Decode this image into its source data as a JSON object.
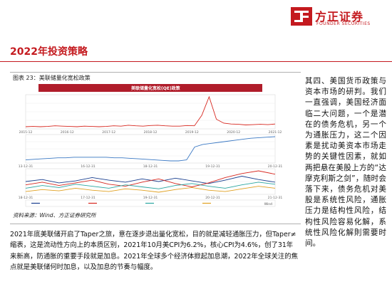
{
  "brand": {
    "name_cn": "方正证券",
    "name_en": "FOUNDER SECURITIES",
    "color": "#c41a1f"
  },
  "page": {
    "title": "2022年投资策略"
  },
  "figure": {
    "caption": "图表 23：美联储量化宽松政策",
    "source": "资料来源：Wind、方正证券研究所"
  },
  "chart_data": {
    "type": "line",
    "title": "美联储量化宽松(QE)政策",
    "panels": [
      {
        "name": "top",
        "x_ticks": [
          "2015-12",
          "2016-12",
          "2017-12",
          "2018-12",
          "2019-12",
          "2020-12",
          "2021-12"
        ],
        "series": [
          {
            "color": "#d7271f",
            "values": [
              1.0,
              1.1,
              1.0,
              1.1,
              1.3,
              1.2,
              1.1,
              1.0,
              1.2,
              1.1,
              1.0,
              1.1,
              1.3,
              1.2,
              1.5,
              1.3,
              1.2,
              1.4,
              1.5,
              1.3,
              1.2,
              1.2,
              1.4,
              1.3,
              4.8,
              11.0,
              3.5,
              2.2,
              1.9,
              1.8,
              1.6,
              1.7,
              1.8,
              1.7,
              1.9
            ]
          }
        ]
      },
      {
        "name": "middle",
        "x_ticks": [
          "13-12-31",
          "16-12-31",
          "18-12-31",
          "19-12-31",
          "20-12-31"
        ],
        "series": [
          {
            "color": "#3a78c3",
            "values": [
              4.0,
              4.1,
              4.2,
              4.3,
              4.4,
              4.4,
              4.5,
              4.5,
              4.5,
              4.5,
              4.5,
              4.4,
              4.4,
              4.3,
              4.2,
              4.1,
              4.0,
              3.9,
              3.8,
              3.8,
              4.0,
              6.5,
              7.0,
              7.2,
              7.4,
              7.6,
              7.8,
              8.0,
              8.2,
              8.3,
              8.4,
              8.5
            ]
          }
        ]
      },
      {
        "name": "bottom",
        "x_ticks": [
          "18-12-31",
          "17-12-31",
          "19-12-31",
          "20-12-31",
          "21-12-31"
        ],
        "series": [
          {
            "color": "#1a3f8f",
            "values": [
              2.0,
              2.3,
              1.8,
              2.1,
              2.6,
              2.2,
              1.9,
              2.4,
              2.0,
              2.5,
              2.1,
              1.7,
              2.2,
              2.8,
              2.3,
              1.9
            ]
          },
          {
            "color": "#d7271f",
            "values": [
              1.5,
              1.9,
              1.4,
              1.8,
              2.2,
              1.6,
              1.3,
              1.9,
              2.4,
              1.7,
              1.2,
              1.8,
              2.6,
              3.2,
              3.6,
              3.1
            ]
          },
          {
            "color": "#2aa6a0",
            "values": [
              1.0,
              1.4,
              1.1,
              1.6,
              1.3,
              1.0,
              1.5,
              1.2,
              0.9,
              1.4,
              1.7,
              1.3,
              1.0,
              1.5,
              1.9,
              1.6
            ]
          },
          {
            "color": "#e0a020",
            "values": [
              0.5,
              0.8,
              0.6,
              1.0,
              0.7,
              0.5,
              0.9,
              0.7,
              0.4,
              0.8,
              1.1,
              0.7,
              0.5,
              0.9,
              1.3,
              1.0
            ]
          }
        ],
        "legend_note": "Wind"
      }
    ]
  },
  "body": {
    "paragraph": "2021年底美联储开启了Taper之旅，意在逐步退出量化宽松，目的就是减轻通胀压力，但Taper≠缩表，这是流动性方向上的本质区别，2021年10月美CPI为6.2%，核心CPI为4.6%，创了31年来新高，防通胀的重要手段就是加息。2021年全球多个经济体掀起加息潮，2022年全球关注的焦点就是美联储何时加息，以及加息的节奏与幅度。"
  },
  "side": {
    "paragraph": "其四、美国货币政策与资本市场的研判。我们一直强调，美国经济面临二大问题，一个是潜在的债务危机，另一个为通胀压力，这二个因素是扰动美资本市场走势的关键性因素，就如两把悬在美股上方的“达摩克利斯之剑”，随时会落下来，债务危机对美股是系统性风险，通胀压力是结构性风险，结构性风险容易化解，系统性风险化解則需要时间。"
  }
}
